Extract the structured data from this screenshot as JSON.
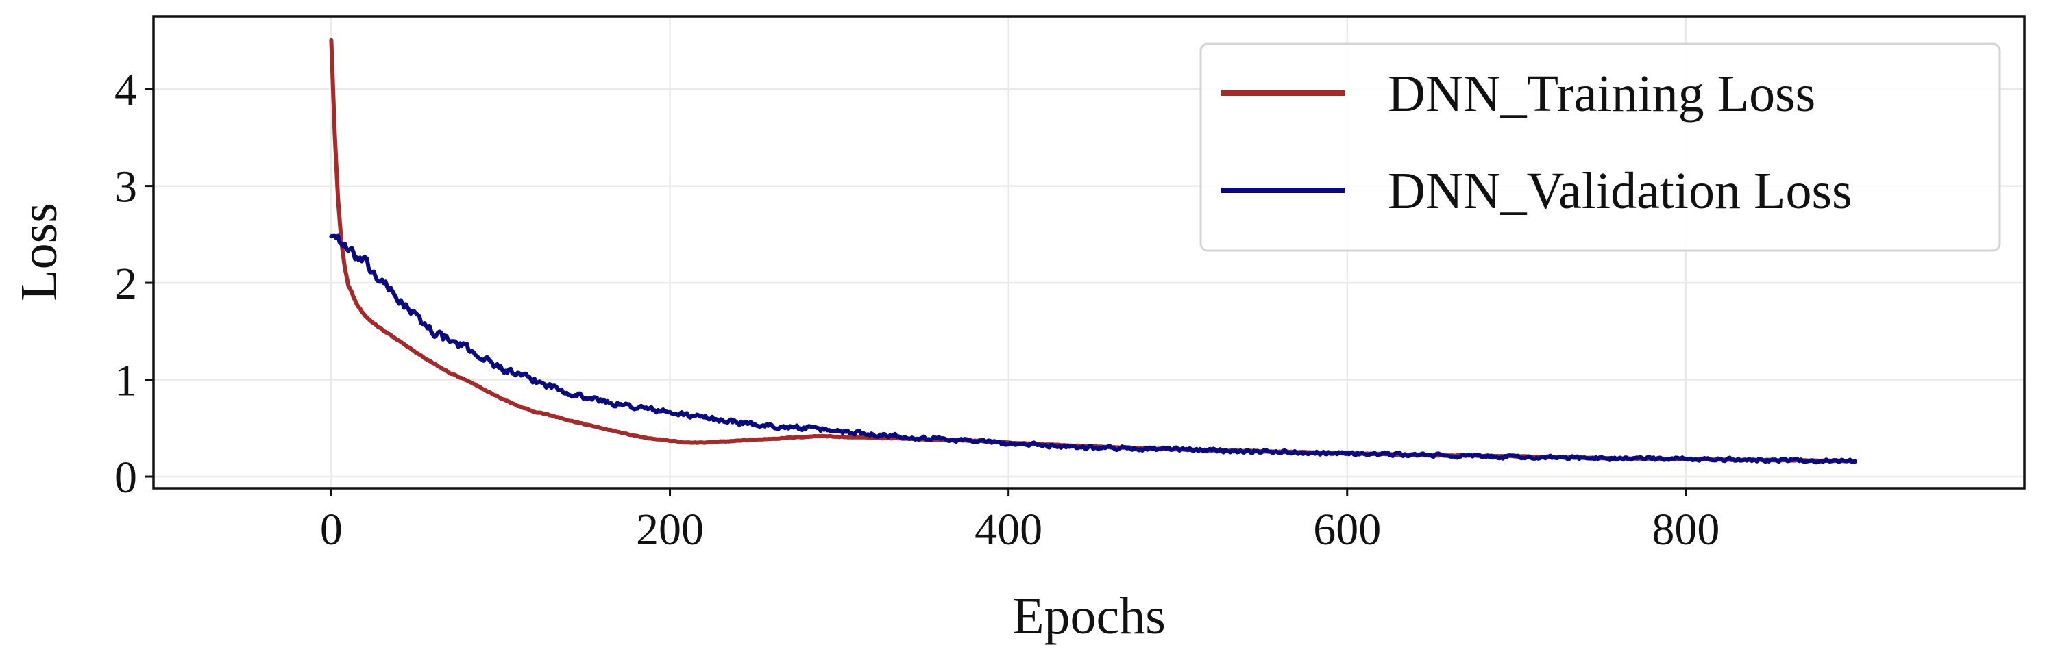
{
  "chart_data": {
    "type": "line",
    "xlabel": "Epochs",
    "ylabel": "Loss",
    "xlim": [
      -105,
      1000
    ],
    "ylim": [
      -0.12,
      4.75
    ],
    "x_ticks": [
      0,
      200,
      400,
      600,
      800
    ],
    "y_ticks": [
      0,
      1,
      2,
      3,
      4
    ],
    "grid": true,
    "legend_position": "top-right",
    "series": [
      {
        "name": "DNN_Training Loss",
        "color": "#a52a2a",
        "noise": 0.008,
        "x": [
          0,
          2,
          4,
          6,
          8,
          10,
          15,
          20,
          30,
          40,
          50,
          60,
          70,
          80,
          90,
          100,
          110,
          120,
          130,
          140,
          150,
          160,
          170,
          180,
          190,
          200,
          210,
          220,
          230,
          240,
          250,
          260,
          270,
          280,
          290,
          300,
          320,
          340,
          360,
          380,
          400,
          450,
          500,
          550,
          600,
          650,
          700,
          750,
          800,
          850,
          900
        ],
        "y": [
          4.52,
          3.55,
          2.85,
          2.42,
          2.15,
          1.98,
          1.78,
          1.65,
          1.52,
          1.4,
          1.28,
          1.17,
          1.07,
          0.99,
          0.9,
          0.81,
          0.73,
          0.67,
          0.63,
          0.58,
          0.54,
          0.5,
          0.46,
          0.42,
          0.39,
          0.37,
          0.35,
          0.35,
          0.36,
          0.37,
          0.38,
          0.39,
          0.4,
          0.41,
          0.42,
          0.41,
          0.4,
          0.39,
          0.38,
          0.37,
          0.35,
          0.31,
          0.28,
          0.26,
          0.24,
          0.22,
          0.21,
          0.19,
          0.18,
          0.17,
          0.16
        ]
      },
      {
        "name": "DNN_Validation Loss",
        "color": "#0a0a80",
        "noise": 0.045,
        "x": [
          0,
          5,
          10,
          20,
          30,
          40,
          50,
          60,
          70,
          80,
          90,
          100,
          110,
          120,
          130,
          140,
          150,
          160,
          170,
          180,
          190,
          200,
          220,
          240,
          260,
          280,
          300,
          320,
          340,
          360,
          380,
          400,
          450,
          500,
          550,
          600,
          650,
          700,
          750,
          800,
          850,
          900
        ],
        "y": [
          2.5,
          2.45,
          2.32,
          2.2,
          2.0,
          1.83,
          1.65,
          1.5,
          1.4,
          1.33,
          1.22,
          1.12,
          1.05,
          0.99,
          0.93,
          0.87,
          0.82,
          0.78,
          0.74,
          0.72,
          0.69,
          0.66,
          0.61,
          0.56,
          0.52,
          0.5,
          0.47,
          0.44,
          0.41,
          0.39,
          0.37,
          0.34,
          0.3,
          0.28,
          0.26,
          0.24,
          0.22,
          0.2,
          0.19,
          0.18,
          0.17,
          0.16
        ]
      }
    ]
  }
}
